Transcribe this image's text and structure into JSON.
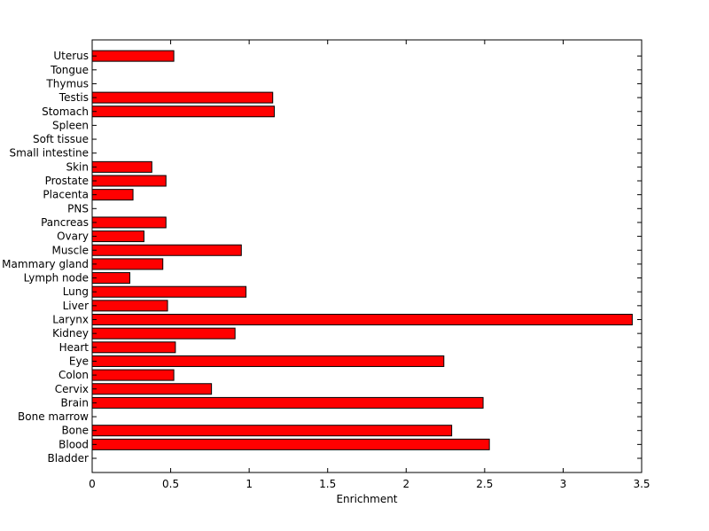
{
  "chart_data": {
    "type": "bar",
    "orientation": "horizontal",
    "title": "",
    "xlabel": "Enrichment",
    "ylabel": "",
    "xlim": [
      0,
      3.5
    ],
    "xticks": [
      0,
      0.5,
      1,
      1.5,
      2,
      2.5,
      3,
      3.5
    ],
    "xtick_labels": [
      "0",
      "0.5",
      "1",
      "1.5",
      "2",
      "2.5",
      "3",
      "3.5"
    ],
    "grid": false,
    "legend": false,
    "bar_color": "#ff0000",
    "categories": [
      "Bladder",
      "Blood",
      "Bone",
      "Bone marrow",
      "Brain",
      "Cervix",
      "Colon",
      "Eye",
      "Heart",
      "Kidney",
      "Larynx",
      "Liver",
      "Lung",
      "Lymph node",
      "Mammary gland",
      "Muscle",
      "Ovary",
      "Pancreas",
      "PNS",
      "Placenta",
      "Prostate",
      "Skin",
      "Small intestine",
      "Soft tissue",
      "Spleen",
      "Stomach",
      "Testis",
      "Thymus",
      "Tongue",
      "Uterus"
    ],
    "values": [
      0,
      2.53,
      2.29,
      0,
      2.49,
      0.76,
      0.52,
      2.24,
      0.53,
      0.91,
      3.44,
      0.48,
      0.98,
      0.24,
      0.45,
      0.95,
      0.33,
      0.47,
      0,
      0.26,
      0.47,
      0.38,
      0,
      0,
      0,
      1.16,
      1.15,
      0,
      0,
      0.52
    ]
  }
}
